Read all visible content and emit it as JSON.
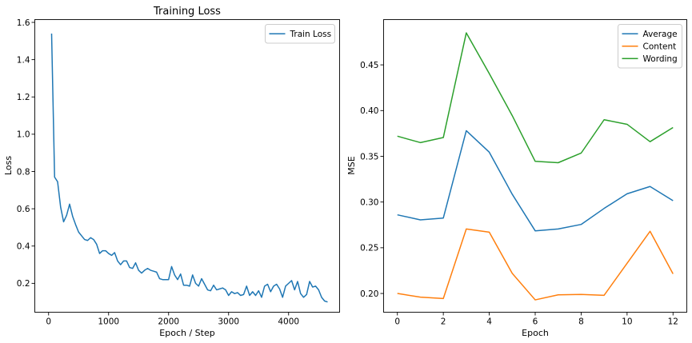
{
  "chart_data": [
    {
      "type": "line",
      "title": "Training Loss",
      "xlabel": "Epoch / Step",
      "ylabel": "Loss",
      "xlim": [
        -230,
        4850
      ],
      "ylim": [
        0.045,
        1.615
      ],
      "xticks": [
        0,
        1000,
        2000,
        3000,
        4000
      ],
      "xtick_labels": [
        "0",
        "1000",
        "2000",
        "3000",
        "4000"
      ],
      "yticks": [
        0.2,
        0.4,
        0.6,
        0.8,
        1.0,
        1.2,
        1.4,
        1.6
      ],
      "ytick_labels": [
        "0.2",
        "0.4",
        "0.6",
        "0.8",
        "1.0",
        "1.2",
        "1.4",
        "1.6"
      ],
      "legend_position": "top-right",
      "series": [
        {
          "name": "Train Loss",
          "color": "#1f77b4",
          "x": [
            50,
            100,
            150,
            200,
            250,
            300,
            350,
            400,
            450,
            500,
            550,
            600,
            650,
            700,
            750,
            800,
            850,
            900,
            950,
            1000,
            1050,
            1100,
            1150,
            1200,
            1250,
            1300,
            1350,
            1400,
            1450,
            1500,
            1550,
            1600,
            1650,
            1700,
            1750,
            1800,
            1850,
            1900,
            1950,
            2000,
            2050,
            2100,
            2150,
            2200,
            2250,
            2300,
            2350,
            2400,
            2450,
            2500,
            2550,
            2600,
            2650,
            2700,
            2750,
            2800,
            2850,
            2900,
            2950,
            3000,
            3050,
            3100,
            3150,
            3200,
            3250,
            3300,
            3350,
            3400,
            3450,
            3500,
            3550,
            3600,
            3650,
            3700,
            3750,
            3800,
            3850,
            3900,
            3950,
            4000,
            4050,
            4100,
            4150,
            4200,
            4250,
            4300,
            4350,
            4400,
            4450,
            4500,
            4550,
            4600,
            4650
          ],
          "y": [
            1.54,
            0.77,
            0.745,
            0.61,
            0.53,
            0.565,
            0.625,
            0.56,
            0.515,
            0.475,
            0.455,
            0.435,
            0.43,
            0.445,
            0.435,
            0.41,
            0.36,
            0.375,
            0.375,
            0.36,
            0.35,
            0.365,
            0.32,
            0.3,
            0.32,
            0.32,
            0.285,
            0.28,
            0.31,
            0.27,
            0.255,
            0.27,
            0.28,
            0.27,
            0.265,
            0.26,
            0.225,
            0.22,
            0.22,
            0.22,
            0.29,
            0.245,
            0.22,
            0.25,
            0.19,
            0.19,
            0.185,
            0.245,
            0.2,
            0.185,
            0.225,
            0.195,
            0.165,
            0.16,
            0.19,
            0.165,
            0.17,
            0.175,
            0.165,
            0.135,
            0.155,
            0.145,
            0.15,
            0.135,
            0.14,
            0.185,
            0.135,
            0.155,
            0.135,
            0.16,
            0.125,
            0.185,
            0.195,
            0.155,
            0.185,
            0.195,
            0.17,
            0.125,
            0.185,
            0.2,
            0.215,
            0.165,
            0.21,
            0.145,
            0.125,
            0.14,
            0.21,
            0.18,
            0.185,
            0.165,
            0.125,
            0.105,
            0.1
          ]
        }
      ]
    },
    {
      "type": "line",
      "title": "",
      "xlabel": "Epoch",
      "ylabel": "MSE",
      "xlim": [
        -0.6,
        12.6
      ],
      "ylim": [
        0.1795,
        0.4995
      ],
      "xticks": [
        0,
        2,
        4,
        6,
        8,
        10,
        12
      ],
      "xtick_labels": [
        "0",
        "2",
        "4",
        "6",
        "8",
        "10",
        "12"
      ],
      "yticks": [
        0.2,
        0.25,
        0.3,
        0.35,
        0.4,
        0.45
      ],
      "ytick_labels": [
        "0.20",
        "0.25",
        "0.30",
        "0.35",
        "0.40",
        "0.45"
      ],
      "legend_position": "top-right",
      "x": [
        0,
        1,
        2,
        3,
        4,
        5,
        6,
        7,
        8,
        9,
        10,
        11,
        12
      ],
      "series": [
        {
          "name": "Average",
          "color": "#1f77b4",
          "values": [
            0.286,
            0.2805,
            0.2825,
            0.378,
            0.3545,
            0.3085,
            0.2685,
            0.2705,
            0.2755,
            0.293,
            0.309,
            0.317,
            0.3015
          ]
        },
        {
          "name": "Content",
          "color": "#ff7f0e",
          "values": [
            0.2,
            0.196,
            0.1945,
            0.2705,
            0.267,
            0.222,
            0.193,
            0.1985,
            0.199,
            0.198,
            0.233,
            0.268,
            0.2215
          ]
        },
        {
          "name": "Wording",
          "color": "#2ca02c",
          "values": [
            0.372,
            0.365,
            0.3705,
            0.485,
            0.4405,
            0.3945,
            0.3445,
            0.343,
            0.3535,
            0.39,
            0.385,
            0.366,
            0.3815
          ]
        }
      ]
    }
  ]
}
